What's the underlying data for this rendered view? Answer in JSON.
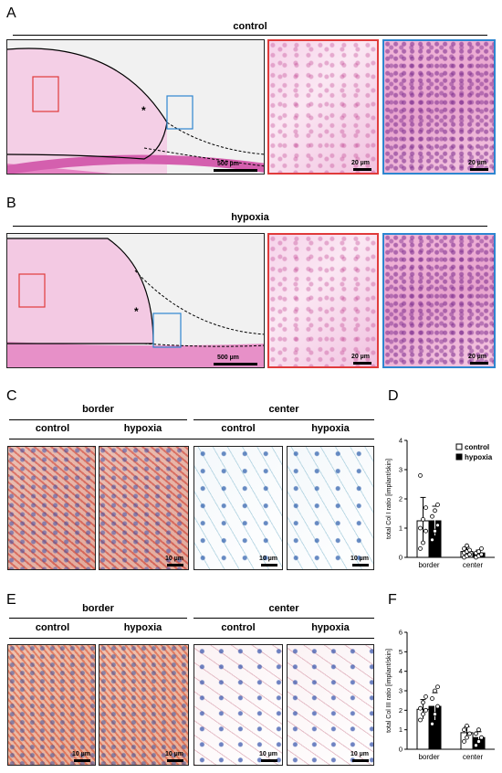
{
  "panels": {
    "A": {
      "letter": "A",
      "title": "control",
      "scale_main": "500 µm",
      "scale_zoom1": "20 µm",
      "scale_zoom2": "20 µm"
    },
    "B": {
      "letter": "B",
      "title": "hypoxia",
      "scale_main": "500 µm",
      "scale_zoom1": "20 µm",
      "scale_zoom2": "20 µm"
    },
    "C": {
      "letter": "C",
      "group1": "border",
      "group2": "center",
      "sub1": "control",
      "sub2": "hypoxia",
      "sub3": "control",
      "sub4": "hypoxia",
      "scale": "10 µm"
    },
    "D": {
      "letter": "D"
    },
    "E": {
      "letter": "E",
      "group1": "border",
      "group2": "center",
      "sub1": "control",
      "sub2": "hypoxia",
      "sub3": "control",
      "sub4": "hypoxia",
      "scale": "10 µm"
    },
    "F": {
      "letter": "F"
    }
  },
  "markers": {
    "asterisk": "*"
  },
  "colors": {
    "red_box": "#e03b3b",
    "blue_box": "#2e86d0"
  },
  "chart_data": [
    {
      "type": "bar",
      "panel": "D",
      "categories": [
        "border",
        "center"
      ],
      "series": [
        {
          "name": "control",
          "values": [
            1.25,
            0.2
          ],
          "errors": [
            0.8,
            0.15
          ],
          "points": [
            [
              0.3,
              0.5,
              0.9,
              1.0,
              1.3,
              1.7,
              2.8
            ],
            [
              0.0,
              0.05,
              0.1,
              0.15,
              0.2,
              0.25,
              0.3,
              0.4
            ]
          ]
        },
        {
          "name": "hypoxia",
          "values": [
            1.25,
            0.15
          ],
          "errors": [
            0.5,
            0.1
          ],
          "points": [
            [
              0.6,
              0.9,
              1.1,
              1.4,
              1.6,
              1.8
            ],
            [
              0.0,
              0.05,
              0.1,
              0.15,
              0.2,
              0.3
            ]
          ]
        }
      ],
      "ylabel": "total Col I ratio [implant/skin]",
      "ylim": [
        0,
        4
      ],
      "yticks": [
        "0",
        "1",
        "2",
        "3",
        "4"
      ],
      "legend": "top-right"
    },
    {
      "type": "bar",
      "panel": "F",
      "categories": [
        "border",
        "center"
      ],
      "series": [
        {
          "name": "control",
          "values": [
            2.05,
            0.85
          ],
          "errors": [
            0.5,
            0.3
          ],
          "points": [
            [
              1.5,
              1.8,
              2.0,
              2.1,
              2.4,
              2.7
            ],
            [
              0.4,
              0.6,
              0.8,
              1.0,
              1.2
            ]
          ]
        },
        {
          "name": "hypoxia",
          "values": [
            2.2,
            0.6
          ],
          "errors": [
            0.7,
            0.3
          ],
          "points": [
            [
              1.3,
              1.8,
              2.2,
              2.6,
              3.0,
              3.2
            ],
            [
              0.2,
              0.4,
              0.6,
              0.8,
              1.0
            ]
          ]
        }
      ],
      "ylabel": "total Col III ratio [implant/skin]",
      "ylim": [
        0,
        6
      ],
      "yticks": [
        "0",
        "1",
        "2",
        "3",
        "4",
        "5",
        "6"
      ]
    }
  ]
}
